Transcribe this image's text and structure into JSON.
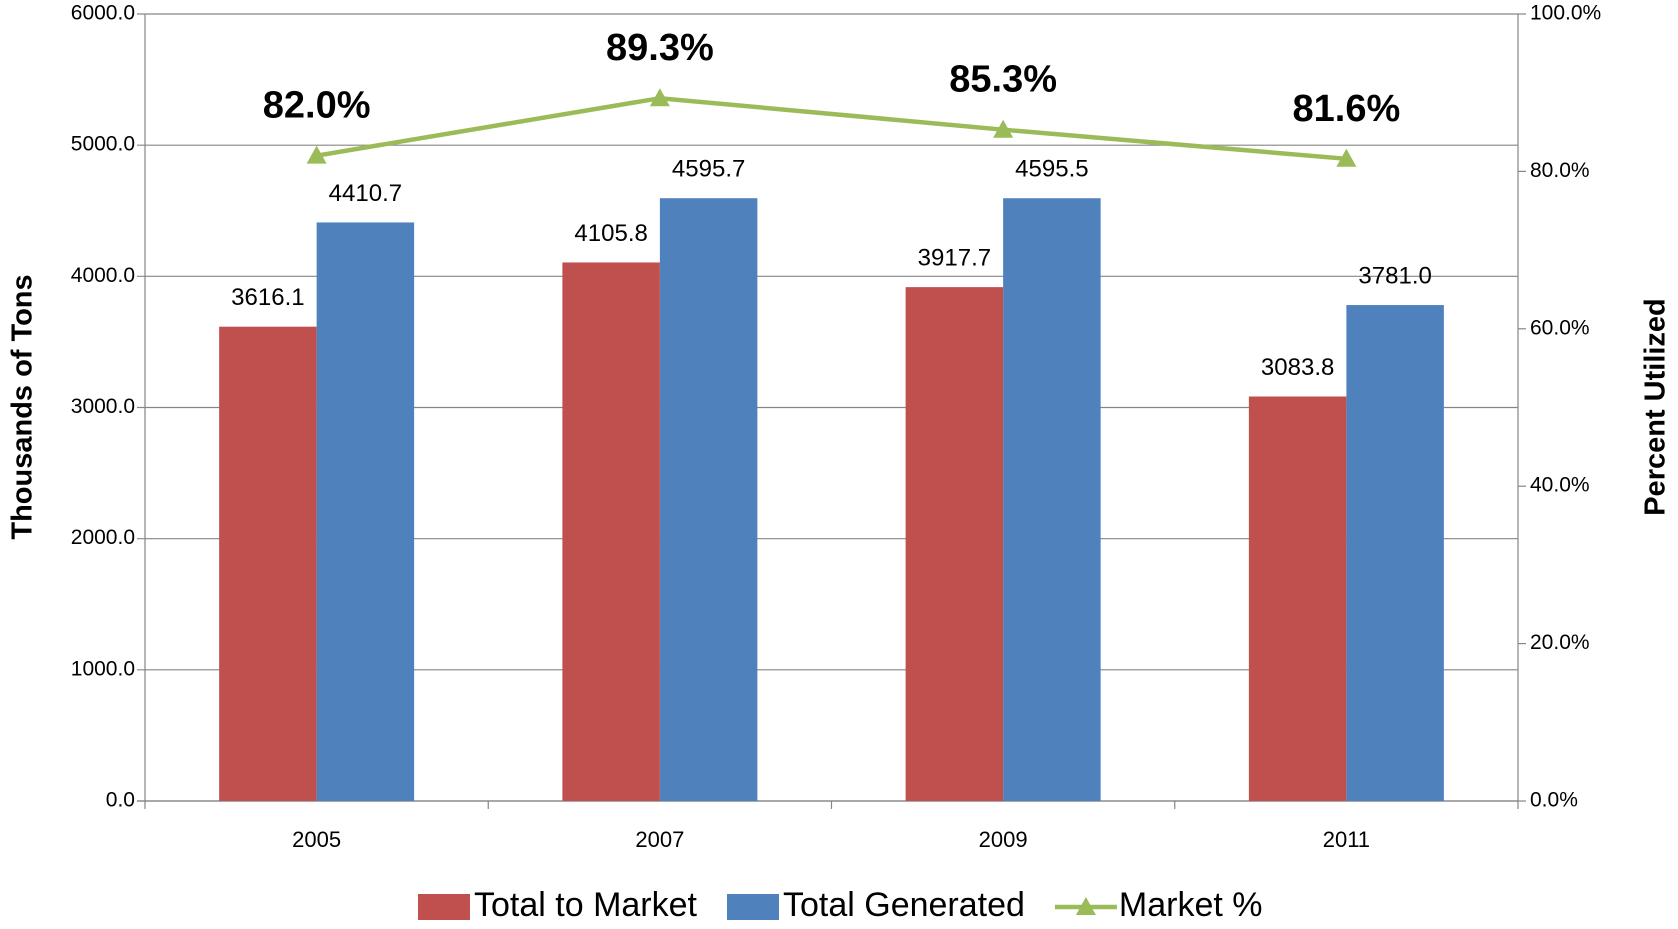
{
  "chart_data": {
    "type": "bar_line",
    "y_axis_label": "Thousands of Tons",
    "y2_axis_label": "Percent Utilized",
    "categories": [
      "2005",
      "2007",
      "2009",
      "2011"
    ],
    "series": [
      {
        "name": "Total to Market",
        "type": "bar",
        "color": "#c0504d",
        "values": [
          3616.1,
          4105.8,
          3917.7,
          3083.8
        ],
        "value_labels": [
          "3616.1",
          "4105.8",
          "3917.7",
          "3083.8"
        ]
      },
      {
        "name": "Total Generated",
        "type": "bar",
        "color": "#4f81bd",
        "values": [
          4410.7,
          4595.7,
          4595.5,
          3781.0
        ],
        "value_labels": [
          "4410.7",
          "4595.7",
          "4595.5",
          "3781.0"
        ]
      },
      {
        "name": "Market %",
        "type": "line",
        "axis": "y2",
        "color": "#9bbb59",
        "values": [
          82.0,
          89.3,
          85.3,
          81.6
        ],
        "value_labels": [
          "82.0%",
          "89.3%",
          "85.3%",
          "81.6%"
        ]
      }
    ],
    "ylim": [
      0,
      6000
    ],
    "yticks": [
      {
        "value": 0,
        "label": "0.0"
      },
      {
        "value": 1000,
        "label": "1000.0"
      },
      {
        "value": 2000,
        "label": "2000.0"
      },
      {
        "value": 3000,
        "label": "3000.0"
      },
      {
        "value": 4000,
        "label": "4000.0"
      },
      {
        "value": 5000,
        "label": "5000.0"
      },
      {
        "value": 6000,
        "label": "6000.0"
      }
    ],
    "y2lim": [
      0,
      100
    ],
    "y2ticks": [
      {
        "value": 0,
        "label": "0.0%"
      },
      {
        "value": 20,
        "label": "20.0%"
      },
      {
        "value": 40,
        "label": "40.0%"
      },
      {
        "value": 60,
        "label": "60.0%"
      },
      {
        "value": 80,
        "label": "80.0%"
      },
      {
        "value": 100,
        "label": "100.0%"
      }
    ],
    "grid": true,
    "legend": "bottom"
  }
}
